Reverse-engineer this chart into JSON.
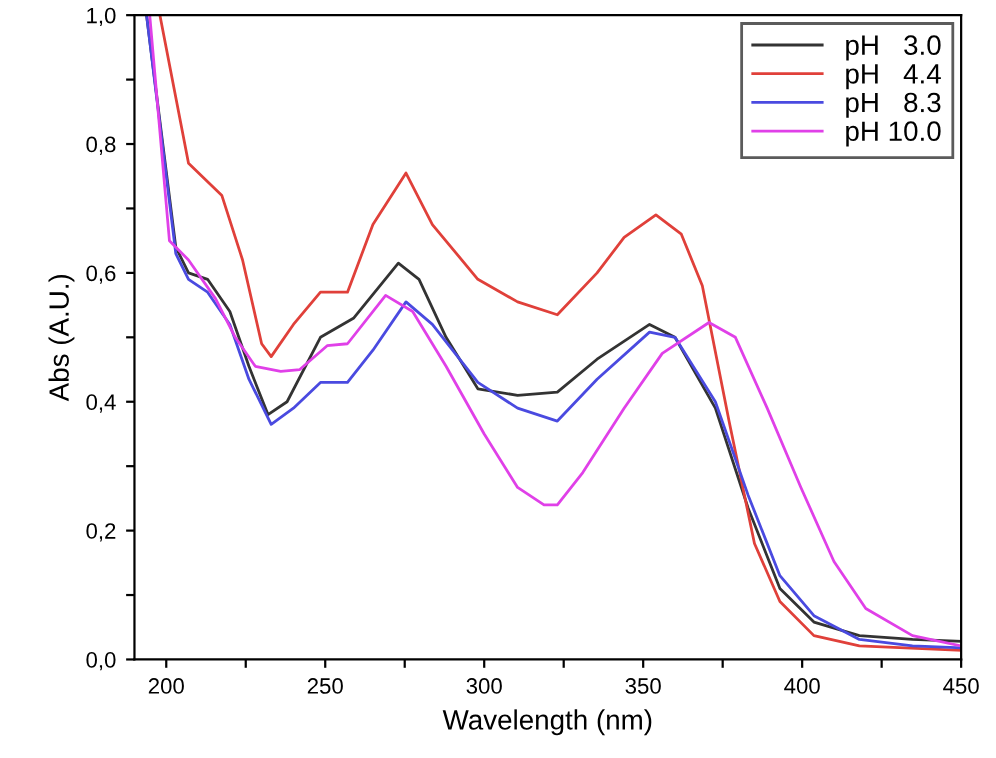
{
  "chart_data": {
    "type": "line",
    "xlabel": "Wavelength (nm)",
    "ylabel": "Abs (A.U.)",
    "xlim": [
      190,
      450
    ],
    "ylim": [
      0,
      1
    ],
    "xticks": [
      200,
      {
        "value": 225,
        "label": null
      },
      250,
      {
        "value": 275,
        "label": null
      },
      300,
      {
        "value": 325,
        "label": null
      },
      350,
      {
        "value": 375,
        "label": null
      },
      400,
      {
        "value": 425,
        "label": null
      },
      450
    ],
    "yticks": [
      {
        "value": 0,
        "label": "0,0"
      },
      {
        "value": 0.1,
        "label": null
      },
      {
        "value": 0.2,
        "label": "0,2"
      },
      {
        "value": 0.3,
        "label": null
      },
      {
        "value": 0.4,
        "label": "0,4"
      },
      {
        "value": 0.5,
        "label": null
      },
      {
        "value": 0.6,
        "label": "0,6"
      },
      {
        "value": 0.7,
        "label": null
      },
      {
        "value": 0.8,
        "label": "0,8"
      },
      {
        "value": 0.9,
        "label": null
      },
      {
        "value": 1.0,
        "label": "1,0"
      }
    ],
    "legend": "top right",
    "grid": false,
    "marker": "none",
    "line_style": "solid",
    "series": [
      {
        "name": "pH   3.0",
        "color": "#333333",
        "x": [
          193.8,
          203,
          207,
          213,
          220,
          226,
          232,
          238,
          248.5,
          259,
          273,
          279.5,
          288,
          298,
          310.5,
          323,
          335.5,
          352,
          360,
          372.7,
          383,
          393,
          403.7,
          418,
          434.7,
          450
        ],
        "values": [
          1.0,
          0.64,
          0.6,
          0.59,
          0.54,
          0.455,
          0.38,
          0.4,
          0.5,
          0.53,
          0.615,
          0.59,
          0.5,
          0.42,
          0.41,
          0.415,
          0.466,
          0.52,
          0.5,
          0.39,
          0.235,
          0.11,
          0.058,
          0.037,
          0.031,
          0.028
        ]
      },
      {
        "name": "pH   4.4",
        "color": "#e0403a",
        "x": [
          198,
          207,
          217.5,
          224,
          230,
          233,
          240,
          248.5,
          257,
          265,
          275.4,
          283.7,
          298,
          310.5,
          323,
          335.5,
          344,
          354,
          362,
          368.6,
          377,
          385,
          393,
          403.7,
          418,
          450
        ],
        "values": [
          1.0,
          0.77,
          0.72,
          0.62,
          0.49,
          0.47,
          0.52,
          0.57,
          0.57,
          0.675,
          0.755,
          0.675,
          0.59,
          0.555,
          0.535,
          0.6,
          0.655,
          0.69,
          0.66,
          0.58,
          0.37,
          0.18,
          0.09,
          0.037,
          0.021,
          0.014
        ]
      },
      {
        "name": "pH   8.3",
        "color": "#4a4ae0",
        "x": [
          193.8,
          203,
          207,
          213,
          220,
          226,
          233,
          240,
          248.5,
          257,
          265,
          275.4,
          283.7,
          298,
          310.5,
          323,
          335.5,
          352,
          360,
          372.7,
          383,
          393,
          403.7,
          418,
          434.7,
          450
        ],
        "values": [
          1.0,
          0.63,
          0.59,
          0.57,
          0.52,
          0.435,
          0.365,
          0.39,
          0.43,
          0.43,
          0.48,
          0.555,
          0.52,
          0.43,
          0.39,
          0.37,
          0.435,
          0.508,
          0.5,
          0.4,
          0.255,
          0.13,
          0.068,
          0.031,
          0.021,
          0.018
        ]
      },
      {
        "name": "pH 10.0",
        "color": "#e040e8",
        "x": [
          194.8,
          201,
          207,
          215.5,
          221.7,
          228,
          236,
          242,
          250.6,
          257,
          269,
          277.5,
          288,
          300,
          310.5,
          318.8,
          323,
          331,
          344,
          356,
          370.7,
          379,
          389,
          399.6,
          410,
          420,
          434.7,
          450
        ],
        "values": [
          1.0,
          0.65,
          0.62,
          0.56,
          0.5,
          0.455,
          0.447,
          0.45,
          0.487,
          0.49,
          0.565,
          0.54,
          0.455,
          0.35,
          0.267,
          0.24,
          0.24,
          0.29,
          0.39,
          0.475,
          0.523,
          0.5,
          0.39,
          0.267,
          0.152,
          0.079,
          0.037,
          0.021
        ]
      }
    ]
  }
}
